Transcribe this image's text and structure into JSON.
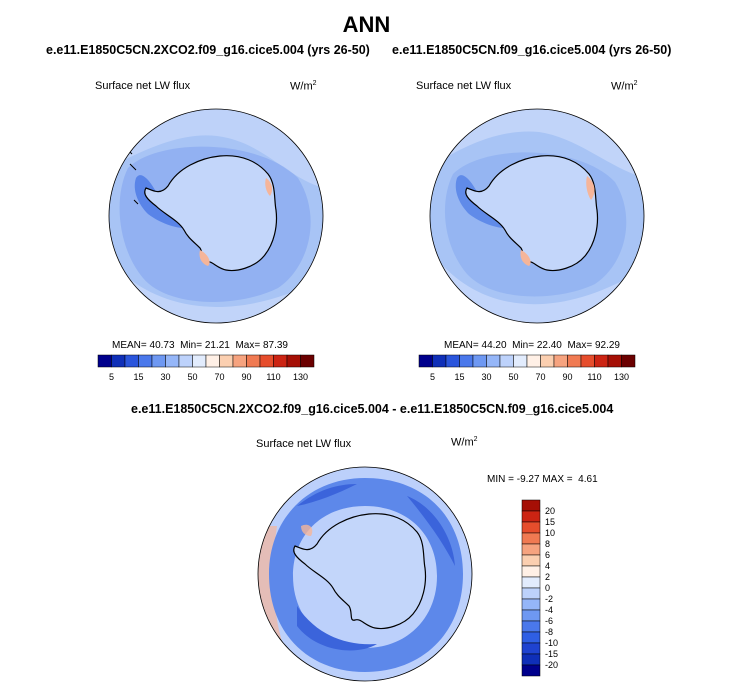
{
  "title": "ANN",
  "panels": [
    {
      "case": "e.e11.E1850C5CN.2XCO2.f09_g16.cice5.004 (yrs 26-50)",
      "variable": "Surface net LW flux",
      "units_base": "W/m",
      "units_exp": "2",
      "mean_label": "MEAN=",
      "mean": "40.73",
      "min_label": "Min=",
      "min": "21.21",
      "max_label": "Max=",
      "max": "87.39"
    },
    {
      "case": "e.e11.E1850C5CN.f09_g16.cice5.004 (yrs 26-50)",
      "variable": "Surface net LW flux",
      "units_base": "W/m",
      "units_exp": "2",
      "mean_label": "MEAN=",
      "mean": "44.20",
      "min_label": "Min=",
      "min": "22.40",
      "max_label": "Max=",
      "max": "92.29"
    }
  ],
  "diff_panel": {
    "case": "e.e11.E1850C5CN.2XCO2.f09_g16.cice5.004 - e.e11.E1850C5CN.f09_g16.cice5.004",
    "variable": "Surface net LW flux",
    "units_base": "W/m",
    "units_exp": "2",
    "min_label": "MIN =",
    "min": "-9.27",
    "max_label": "MAX =",
    "max": "4.61"
  },
  "colorbar_abs": {
    "colors": [
      "#00008c",
      "#0f2fb8",
      "#2a55dc",
      "#4a78eb",
      "#6e98f2",
      "#95b6f8",
      "#bdd2fb",
      "#e2ecfd",
      "#fff0e6",
      "#fbcfb0",
      "#f6a37f",
      "#f07a52",
      "#e64d2c",
      "#cc2413",
      "#a50f05",
      "#6b0000"
    ],
    "labels": [
      "5",
      "15",
      "30",
      "50",
      "70",
      "90",
      "110",
      "130"
    ]
  },
  "colorbar_diff": {
    "colors": [
      "#00008c",
      "#0f2fb8",
      "#1f43d0",
      "#2f5fe4",
      "#4a78eb",
      "#6e98f2",
      "#95b6f8",
      "#bdd2fb",
      "#e2ecfd",
      "#fff0e6",
      "#fbcfb0",
      "#f6a37f",
      "#f07a52",
      "#e64d2c",
      "#cc2413",
      "#a50f05"
    ],
    "labels": [
      "20",
      "15",
      "10",
      "8",
      "6",
      "4",
      "2",
      "0",
      "-2",
      "-4",
      "-6",
      "-8",
      "-10",
      "-15",
      "-20"
    ]
  },
  "colors": {
    "ocean_base": "#a8c4f5",
    "ocean_light": "#c3d6fa",
    "ocean_mid": "#7fa3ef",
    "ocean_dark": "#4f7de6",
    "coast": "#000000",
    "warm": "#f5b59a",
    "diff_base": "#bcd0fb",
    "diff_ring": "#5d88ea",
    "diff_deep": "#3b64db"
  }
}
